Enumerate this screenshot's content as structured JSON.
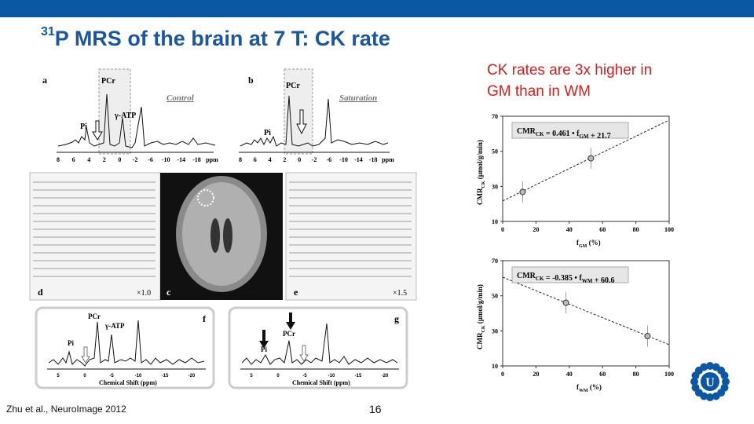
{
  "slide": {
    "title_sup": "31",
    "title_main": "P MRS of the brain at 7 T: CK rate",
    "callout_line1": "CK rates are 3x higher in",
    "callout_line2": "GM than in WM",
    "citation": "Zhu et al., NeuroImage  2012",
    "page_number": "16",
    "colors": {
      "brand": "#0b57a4",
      "title": "#1a57a0",
      "callout": "#d42020"
    },
    "logo_icon": "university-logo-icon"
  },
  "figure": {
    "panel_a": {
      "letter": "a",
      "tag": "Control",
      "pcr": "PCr",
      "pi": "Pi",
      "atp": "γ-ATP",
      "axis_ticks": [
        "8",
        "6",
        "4",
        "2",
        "0",
        "-2",
        "-6",
        "-10",
        "-14",
        "-18",
        "ppm"
      ]
    },
    "panel_b": {
      "letter": "b",
      "tag": "Saturation",
      "pcr": "PCr",
      "pi": "Pi",
      "axis_ticks": [
        "8",
        "6",
        "4",
        "2",
        "0",
        "-2",
        "-6",
        "-10",
        "-14",
        "-18",
        "ppm"
      ]
    },
    "panel_c": {
      "letter": "c"
    },
    "panel_d": {
      "letter": "d",
      "scale": "×1.0"
    },
    "panel_e": {
      "letter": "e",
      "scale": "×1.5"
    },
    "panel_f": {
      "letter": "f",
      "pcr": "PCr",
      "pi": "Pi",
      "atp": "γ-ATP",
      "xlabel": "Chemical Shift (ppm)",
      "ticks": [
        "5",
        "0",
        "-5",
        "-10",
        "-15",
        "-20"
      ]
    },
    "panel_g": {
      "letter": "g",
      "pcr": "PCr",
      "pi": "Pi",
      "xlabel": "Chemical Shift (ppm)",
      "ticks": [
        "5",
        "0",
        "-5",
        "-10",
        "-15",
        "-20"
      ]
    }
  },
  "chart_data": [
    {
      "type": "scatter",
      "equation": "CMR",
      "equation_sub": "CK",
      "equation_rest": " = 0.461 • f",
      "equation_sub2": "GM",
      "equation_tail": " + 21.7",
      "xlabel": "f",
      "xlabel_sub": "GM",
      "xlabel_tail": " (%)",
      "ylabel": "CMR",
      "ylabel_sub": "CK",
      "ylabel_tail": " (µmol/g/min)",
      "xlim": [
        0,
        100
      ],
      "ylim": [
        10,
        70
      ],
      "xticks": [
        0,
        20,
        40,
        60,
        80,
        100
      ],
      "yticks": [
        10,
        30,
        50,
        70
      ],
      "points": [
        {
          "x": 12,
          "y": 26.8,
          "err": 6
        },
        {
          "x": 53,
          "y": 46,
          "err": 6
        }
      ],
      "fit": {
        "slope": 0.461,
        "intercept": 21.7
      }
    },
    {
      "type": "scatter",
      "equation": "CMR",
      "equation_sub": "CK",
      "equation_rest": " = -0.385 • f",
      "equation_sub2": "WM",
      "equation_tail": " + 60.6",
      "xlabel": "f",
      "xlabel_sub": "WM",
      "xlabel_tail": " (%)",
      "ylabel": "CMR",
      "ylabel_sub": "CK",
      "ylabel_tail": " (µmol/g/min)",
      "xlim": [
        0,
        100
      ],
      "ylim": [
        10,
        70
      ],
      "xticks": [
        0,
        20,
        40,
        60,
        80,
        100
      ],
      "yticks": [
        10,
        30,
        50,
        70
      ],
      "points": [
        {
          "x": 38,
          "y": 46,
          "err": 6
        },
        {
          "x": 87,
          "y": 27,
          "err": 6
        }
      ],
      "fit": {
        "slope": -0.385,
        "intercept": 60.6
      }
    }
  ]
}
